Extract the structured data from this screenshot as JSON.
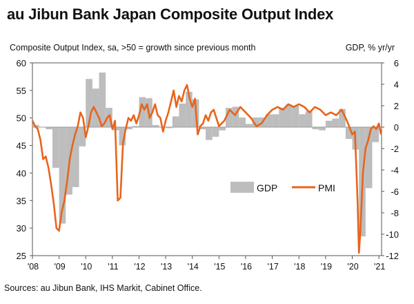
{
  "header": {
    "title": "au Jibun Bank Japan Composite Output Index",
    "subtitle_left": "Composite Output Index, sa, >50 = growth since previous month",
    "subtitle_right": "GDP, % yr/yr"
  },
  "footer": {
    "source": "Sources: au Jibun Bank, IHS Markit, Cabinet Office."
  },
  "colors": {
    "pmi_line": "#E8641B",
    "gdp_bar": "#BDBDBD",
    "axis": "#555555"
  },
  "chart_data": {
    "type": "bar+line",
    "title": "au Jibun Bank Japan Composite Output Index",
    "left_axis_label": "Composite Output Index, sa, >50 = growth since previous month",
    "right_axis_label": "GDP, % yr/yr",
    "x_range": [
      2008.0,
      2021.1
    ],
    "y_left_range": [
      25,
      60
    ],
    "y_right_range": [
      -12,
      6
    ],
    "y_left_ticks": [
      60,
      55,
      50,
      45,
      40,
      35,
      30,
      25
    ],
    "y_right_ticks": [
      6,
      4,
      2,
      0,
      -2,
      -4,
      -6,
      -8,
      -10,
      -12
    ],
    "x_tick_labels": [
      "'08",
      "'09",
      "'10",
      "'11",
      "'12",
      "'13",
      "'14",
      "'15",
      "'16",
      "'17",
      "'18",
      "'19",
      "'20",
      "'21"
    ],
    "x_tick_years": [
      2008,
      2009,
      2010,
      2011,
      2012,
      2013,
      2014,
      2015,
      2016,
      2017,
      2018,
      2019,
      2020,
      2021
    ],
    "legend": [
      "GDP",
      "PMI"
    ],
    "series": [
      {
        "name": "GDP",
        "kind": "bar",
        "axis": "right",
        "quarter_width": 0.25,
        "x": [
          2008.0,
          2008.25,
          2008.5,
          2008.75,
          2009.0,
          2009.25,
          2009.5,
          2009.75,
          2010.0,
          2010.25,
          2010.5,
          2010.75,
          2011.0,
          2011.25,
          2011.5,
          2011.75,
          2012.0,
          2012.25,
          2012.5,
          2012.75,
          2013.0,
          2013.25,
          2013.5,
          2013.75,
          2014.0,
          2014.25,
          2014.5,
          2014.75,
          2015.0,
          2015.25,
          2015.5,
          2015.75,
          2016.0,
          2016.25,
          2016.5,
          2016.75,
          2017.0,
          2017.25,
          2017.5,
          2017.75,
          2018.0,
          2018.25,
          2018.5,
          2018.75,
          2019.0,
          2019.25,
          2019.5,
          2019.75,
          2020.0,
          2020.25,
          2020.5,
          2020.75
        ],
        "values": [
          0.2,
          0.0,
          -0.2,
          -3.8,
          -9.0,
          -6.3,
          -5.6,
          -1.8,
          4.5,
          3.6,
          5.1,
          1.8,
          -0.3,
          -1.7,
          -0.2,
          0.1,
          2.8,
          2.7,
          0.2,
          0.0,
          -0.1,
          1.0,
          2.2,
          3.3,
          2.6,
          -0.2,
          -1.2,
          -0.9,
          -0.3,
          1.8,
          1.9,
          0.9,
          0.3,
          0.9,
          0.9,
          1.2,
          1.2,
          1.8,
          2.1,
          2.0,
          1.2,
          1.5,
          -0.2,
          -0.3,
          0.6,
          0.8,
          1.7,
          -1.1,
          -2.1,
          -10.2,
          -5.7,
          -1.4
        ]
      },
      {
        "name": "PMI",
        "kind": "line",
        "axis": "left",
        "x": [
          2008.0,
          2008.1,
          2008.2,
          2008.3,
          2008.4,
          2008.5,
          2008.6,
          2008.7,
          2008.8,
          2008.9,
          2009.0,
          2009.1,
          2009.2,
          2009.3,
          2009.4,
          2009.5,
          2009.6,
          2009.7,
          2009.8,
          2009.9,
          2010.0,
          2010.1,
          2010.2,
          2010.3,
          2010.4,
          2010.5,
          2010.6,
          2010.7,
          2010.8,
          2010.9,
          2011.0,
          2011.1,
          2011.2,
          2011.3,
          2011.4,
          2011.5,
          2011.6,
          2011.7,
          2011.8,
          2011.9,
          2012.0,
          2012.1,
          2012.2,
          2012.3,
          2012.4,
          2012.5,
          2012.6,
          2012.7,
          2012.8,
          2012.9,
          2013.0,
          2013.1,
          2013.2,
          2013.3,
          2013.4,
          2013.5,
          2013.6,
          2013.7,
          2013.8,
          2013.9,
          2014.0,
          2014.1,
          2014.2,
          2014.3,
          2014.4,
          2014.5,
          2014.6,
          2014.7,
          2014.8,
          2014.9,
          2015.0,
          2015.2,
          2015.4,
          2015.6,
          2015.8,
          2016.0,
          2016.2,
          2016.4,
          2016.6,
          2016.8,
          2017.0,
          2017.2,
          2017.4,
          2017.6,
          2017.8,
          2018.0,
          2018.2,
          2018.4,
          2018.6,
          2018.8,
          2019.0,
          2019.2,
          2019.4,
          2019.6,
          2019.8,
          2020.0,
          2020.1,
          2020.2,
          2020.25,
          2020.3,
          2020.4,
          2020.5,
          2020.6,
          2020.7,
          2020.8,
          2020.9,
          2021.0,
          2021.08
        ],
        "values": [
          49.5,
          48.5,
          48.0,
          46.0,
          42.5,
          43.0,
          41.0,
          38.0,
          34.5,
          30.0,
          29.5,
          33.0,
          35.0,
          38.5,
          42.5,
          45.0,
          47.0,
          48.5,
          51.0,
          50.0,
          46.5,
          48.5,
          51.0,
          52.0,
          51.0,
          50.0,
          48.5,
          49.0,
          50.0,
          50.5,
          48.0,
          49.5,
          35.0,
          35.5,
          45.5,
          48.0,
          50.0,
          49.5,
          50.5,
          49.0,
          50.5,
          52.5,
          51.5,
          52.5,
          50.0,
          51.0,
          52.5,
          50.5,
          50.0,
          47.5,
          49.5,
          51.0,
          53.0,
          55.0,
          52.0,
          54.0,
          53.0,
          55.0,
          56.0,
          53.5,
          52.0,
          53.5,
          47.0,
          48.5,
          49.0,
          50.5,
          49.5,
          51.0,
          51.5,
          50.0,
          48.5,
          49.5,
          51.5,
          50.5,
          52.0,
          51.0,
          50.0,
          48.5,
          49.0,
          50.5,
          51.5,
          52.0,
          51.5,
          52.5,
          52.0,
          52.5,
          52.0,
          51.0,
          52.0,
          51.5,
          50.5,
          51.0,
          50.5,
          51.5,
          49.5,
          47.0,
          47.5,
          35.0,
          25.5,
          29.0,
          40.0,
          44.5,
          46.0,
          48.0,
          48.5,
          48.0,
          49.0,
          47.0
        ]
      }
    ]
  }
}
